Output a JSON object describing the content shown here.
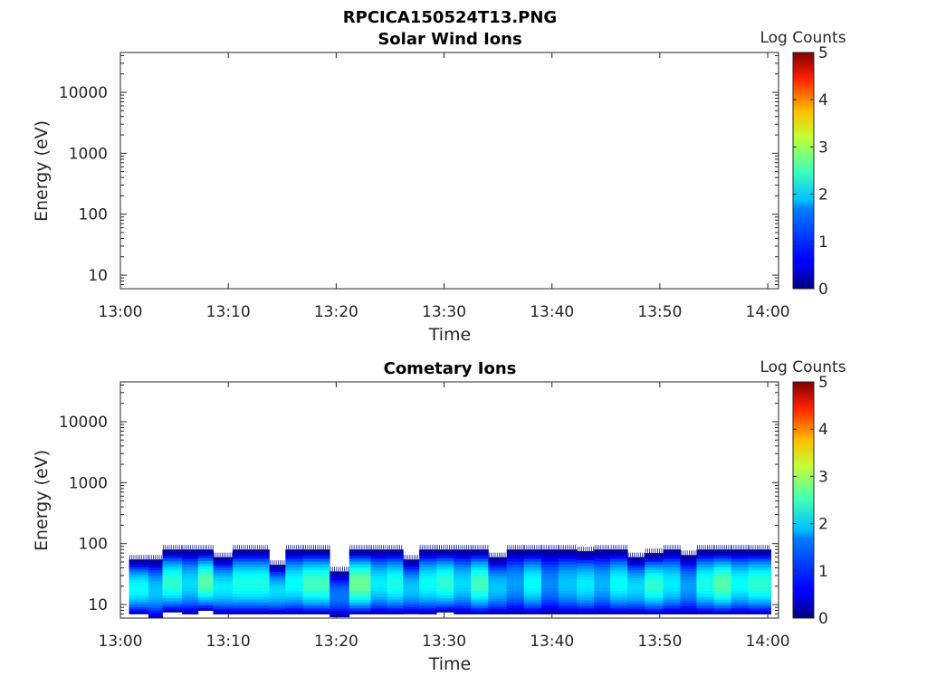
{
  "figure_title": "RPCICA150524T13.PNG",
  "chart_data": [
    {
      "type": "heatmap",
      "title": "Solar Wind Ions",
      "xlabel": "Time",
      "ylabel": "Energy (eV)",
      "x_ticks": [
        "13:00",
        "13:10",
        "13:20",
        "13:30",
        "13:40",
        "13:50",
        "14:00"
      ],
      "x_range_minutes": [
        0,
        61
      ],
      "y_scale": "log",
      "y_range": [
        6,
        45000
      ],
      "y_ticks": [
        {
          "value": 10,
          "label": "10"
        },
        {
          "value": 100,
          "label": "100"
        },
        {
          "value": 1000,
          "label": "1000"
        },
        {
          "value": 10000,
          "label": "10000"
        }
      ],
      "colorbar": {
        "label": "Log Counts",
        "min": 0,
        "max": 5,
        "ticks": [
          "0",
          "1",
          "2",
          "3",
          "4",
          "5"
        ],
        "colormap": "jet"
      },
      "data": "empty"
    },
    {
      "type": "heatmap",
      "title": "Cometary Ions",
      "xlabel": "Time",
      "ylabel": "Energy (eV)",
      "x_ticks": [
        "13:00",
        "13:10",
        "13:20",
        "13:30",
        "13:40",
        "13:50",
        "14:00"
      ],
      "x_range_minutes": [
        0,
        61
      ],
      "y_scale": "log",
      "y_range": [
        6,
        45000
      ],
      "y_ticks": [
        {
          "value": 10,
          "label": "10"
        },
        {
          "value": 100,
          "label": "100"
        },
        {
          "value": 1000,
          "label": "1000"
        },
        {
          "value": 10000,
          "label": "10000"
        }
      ],
      "colorbar": {
        "label": "Log Counts",
        "min": 0,
        "max": 5,
        "ticks": [
          "0",
          "1",
          "2",
          "3",
          "4",
          "5"
        ],
        "colormap": "jet"
      },
      "energy_range_eV": [
        6,
        80
      ],
      "time_columns_minutes": [
        {
          "t0": 0.8,
          "t1": 2.6,
          "top": 55,
          "bot": 7,
          "peak": 1.9
        },
        {
          "t0": 2.6,
          "t1": 3.9,
          "top": 55,
          "bot": 6,
          "peak": 1.6
        },
        {
          "t0": 3.9,
          "t1": 5.7,
          "top": 80,
          "bot": 7.5,
          "peak": 2.1
        },
        {
          "t0": 5.7,
          "t1": 7.2,
          "top": 80,
          "bot": 7,
          "peak": 1.7
        },
        {
          "t0": 7.2,
          "t1": 8.6,
          "top": 80,
          "bot": 8,
          "peak": 2.3
        },
        {
          "t0": 8.6,
          "t1": 10.4,
          "top": 60,
          "bot": 7,
          "peak": 1.8
        },
        {
          "t0": 10.4,
          "t1": 13.8,
          "top": 80,
          "bot": 7,
          "peak": 2.0
        },
        {
          "t0": 13.8,
          "t1": 15.3,
          "top": 45,
          "bot": 7,
          "peak": 1.7
        },
        {
          "t0": 15.3,
          "t1": 16.9,
          "top": 80,
          "bot": 7,
          "peak": 1.9
        },
        {
          "t0": 16.9,
          "t1": 19.4,
          "top": 80,
          "bot": 7,
          "peak": 2.2
        },
        {
          "t0": 19.4,
          "t1": 21.2,
          "top": 35,
          "bot": 6.3,
          "peak": 1.2
        },
        {
          "t0": 21.2,
          "t1": 23.2,
          "top": 80,
          "bot": 7,
          "peak": 2.4
        },
        {
          "t0": 23.2,
          "t1": 24.7,
          "top": 80,
          "bot": 7,
          "peak": 1.8
        },
        {
          "t0": 24.7,
          "t1": 26.2,
          "top": 80,
          "bot": 7,
          "peak": 2.0
        },
        {
          "t0": 26.2,
          "t1": 27.7,
          "top": 55,
          "bot": 7,
          "peak": 1.6
        },
        {
          "t0": 27.7,
          "t1": 29.3,
          "top": 80,
          "bot": 7,
          "peak": 1.9
        },
        {
          "t0": 29.3,
          "t1": 30.9,
          "top": 80,
          "bot": 7.5,
          "peak": 2.1
        },
        {
          "t0": 30.9,
          "t1": 32.5,
          "top": 80,
          "bot": 7,
          "peak": 1.7
        },
        {
          "t0": 32.5,
          "t1": 34.1,
          "top": 80,
          "bot": 7,
          "peak": 2.2
        },
        {
          "t0": 34.1,
          "t1": 35.8,
          "top": 60,
          "bot": 7,
          "peak": 1.6
        },
        {
          "t0": 35.8,
          "t1": 37.4,
          "top": 80,
          "bot": 7,
          "peak": 1.4
        },
        {
          "t0": 37.4,
          "t1": 39.0,
          "top": 80,
          "bot": 7,
          "peak": 1.9
        },
        {
          "t0": 39.0,
          "t1": 40.6,
          "top": 80,
          "bot": 7,
          "peak": 1.3
        },
        {
          "t0": 40.6,
          "t1": 42.3,
          "top": 80,
          "bot": 7,
          "peak": 1.6
        },
        {
          "t0": 42.3,
          "t1": 43.9,
          "top": 75,
          "bot": 7,
          "peak": 1.8
        },
        {
          "t0": 43.9,
          "t1": 45.4,
          "top": 80,
          "bot": 7,
          "peak": 1.5
        },
        {
          "t0": 45.4,
          "t1": 47.0,
          "top": 80,
          "bot": 7,
          "peak": 1.9
        },
        {
          "t0": 47.0,
          "t1": 48.6,
          "top": 60,
          "bot": 7,
          "peak": 1.7
        },
        {
          "t0": 48.6,
          "t1": 50.3,
          "top": 70,
          "bot": 7,
          "peak": 2.1
        },
        {
          "t0": 50.3,
          "t1": 51.9,
          "top": 80,
          "bot": 7,
          "peak": 1.8
        },
        {
          "t0": 51.9,
          "t1": 53.4,
          "top": 65,
          "bot": 7,
          "peak": 1.4
        },
        {
          "t0": 53.4,
          "t1": 55.0,
          "top": 80,
          "bot": 7,
          "peak": 2.0
        },
        {
          "t0": 55.0,
          "t1": 56.6,
          "top": 80,
          "bot": 7,
          "peak": 2.3
        },
        {
          "t0": 56.6,
          "t1": 58.2,
          "top": 80,
          "bot": 7,
          "peak": 1.9
        },
        {
          "t0": 58.2,
          "t1": 60.3,
          "top": 80,
          "bot": 7,
          "peak": 2.1
        }
      ]
    }
  ]
}
